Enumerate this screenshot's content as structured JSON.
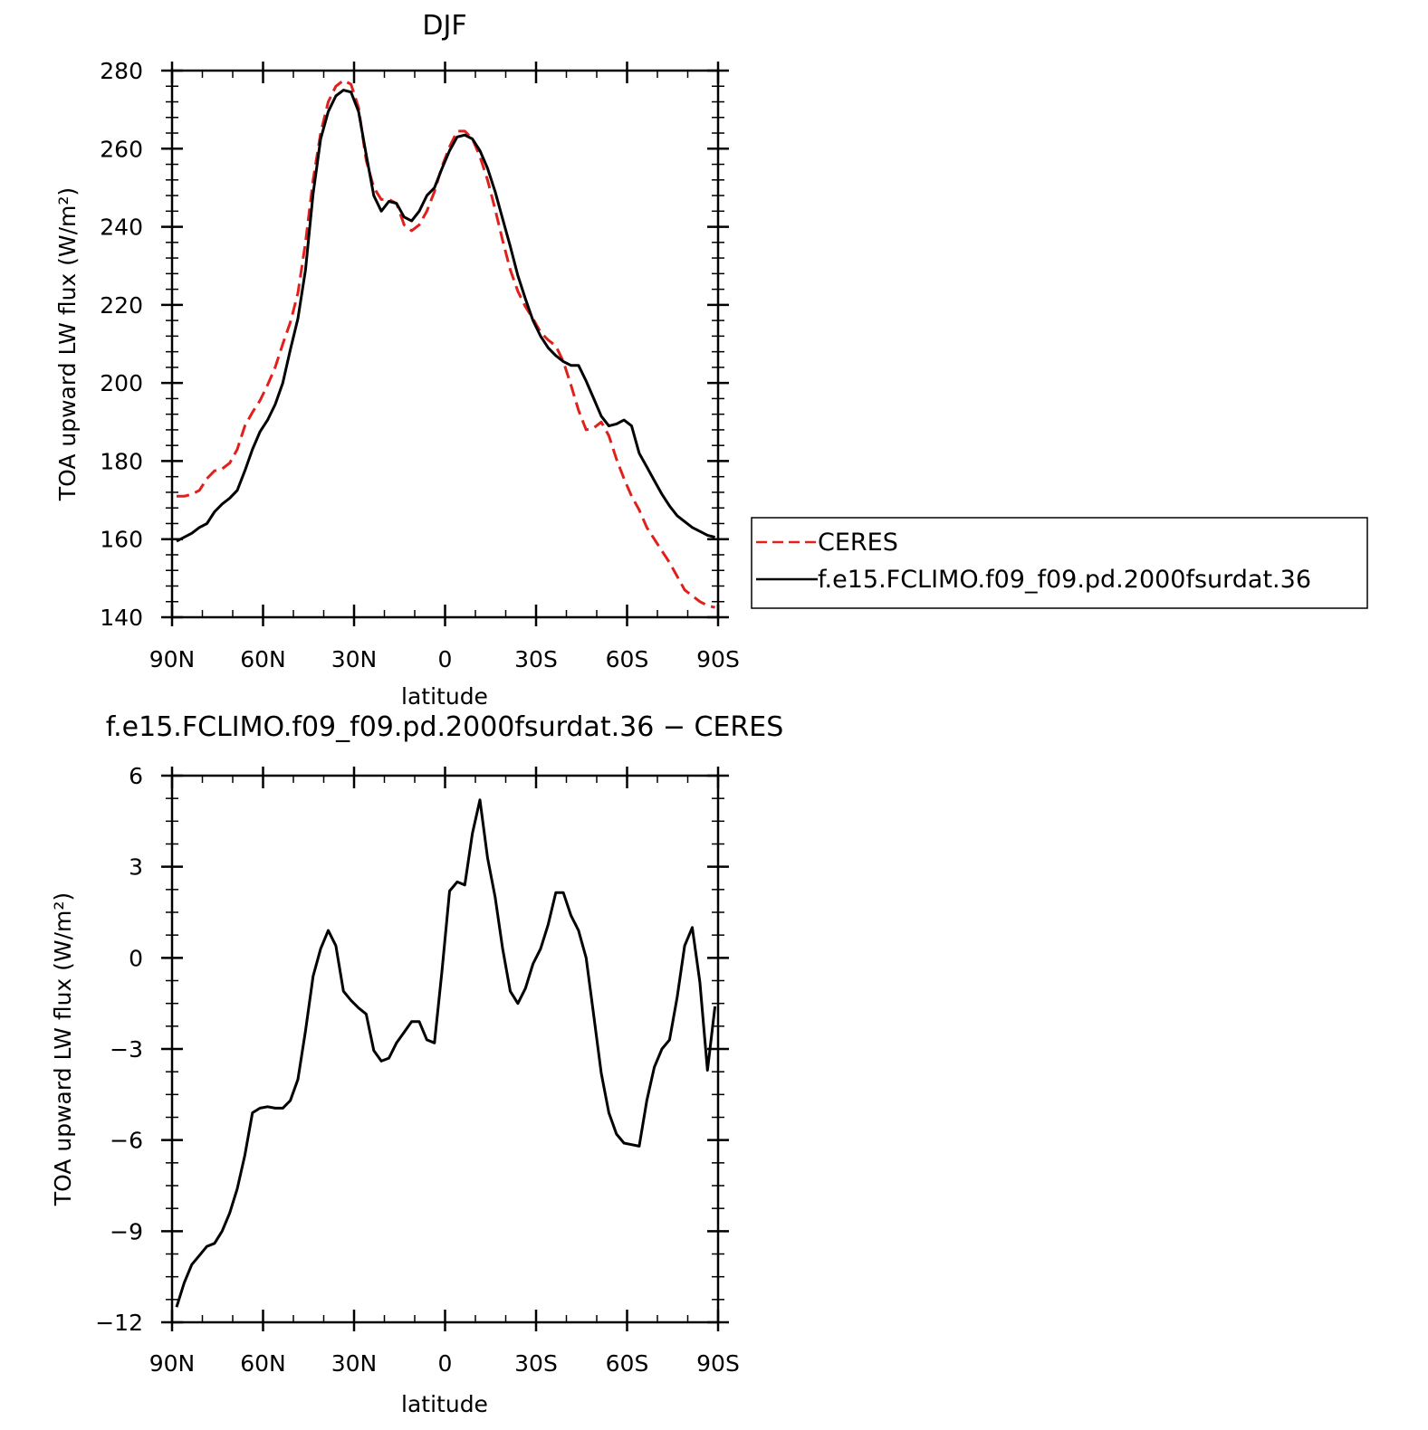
{
  "chart_data": [
    {
      "type": "line",
      "title": "DJF",
      "xlabel": "latitude",
      "ylabel": "TOA upward LW flux (W/m²)",
      "xlim": [
        90,
        -90
      ],
      "ylim": [
        140,
        280
      ],
      "xticks": [
        90,
        60,
        30,
        0,
        -30,
        -60,
        -90
      ],
      "xtick_labels": [
        "90N",
        "60N",
        "30N",
        "0",
        "30S",
        "60S",
        "90S"
      ],
      "yticks": [
        140,
        160,
        180,
        200,
        220,
        240,
        260,
        280
      ],
      "ytick_labels": [
        "140",
        "160",
        "180",
        "200",
        "220",
        "240",
        "260",
        "280"
      ],
      "legend_position": "right",
      "series": [
        {
          "name": "CERES",
          "color": "#e0201b",
          "dash": "dashed",
          "x": [
            88.5,
            86,
            83.5,
            81,
            78.5,
            76,
            73.5,
            71,
            68.5,
            66,
            63.5,
            61,
            58.5,
            56,
            53.5,
            51,
            48.5,
            46,
            43.5,
            41,
            38.5,
            36,
            33.5,
            31,
            28.5,
            26,
            23.5,
            21,
            18.5,
            16,
            13.5,
            11,
            8.5,
            6,
            3.5,
            1,
            -1.5,
            -4,
            -6.5,
            -9,
            -11.5,
            -14,
            -16.5,
            -19,
            -21.5,
            -24,
            -26.5,
            -29,
            -31.5,
            -34,
            -36.5,
            -39,
            -41.5,
            -44,
            -46.5,
            -49,
            -51.5,
            -54,
            -56.5,
            -59,
            -61.5,
            -64,
            -66.5,
            -69,
            -71.5,
            -74,
            -76.5,
            -79,
            -81.5,
            -84,
            -86.5,
            -89
          ],
          "y": [
            171.0,
            171.0,
            171.5,
            172.5,
            175.5,
            177.5,
            178.0,
            179.5,
            183.0,
            189.0,
            192.5,
            195.5,
            199.5,
            204.0,
            210.0,
            215.5,
            223.0,
            236.0,
            252.0,
            264.0,
            272.0,
            276.0,
            277.5,
            276.5,
            270.5,
            257.0,
            250.0,
            247.0,
            247.0,
            246.0,
            240.5,
            239.0,
            240.5,
            244.0,
            249.0,
            255.5,
            260.5,
            264.5,
            264.5,
            262.5,
            258.0,
            252.0,
            244.5,
            236.5,
            229.0,
            223.5,
            219.5,
            216.5,
            213.0,
            211.0,
            209.5,
            205.5,
            199.5,
            193.0,
            188.0,
            188.5,
            190.0,
            186.5,
            180.5,
            175.5,
            171.0,
            167.5,
            163.0,
            160.0,
            157.0,
            154.0,
            150.5,
            147.0,
            145.5,
            144.0,
            143.0,
            142.5
          ]
        },
        {
          "name": "f.e15.FCLIMO.f09_f09.pd.2000fsurdat.36",
          "color": "#000000",
          "dash": "solid",
          "x": [
            88.5,
            86,
            83.5,
            81,
            78.5,
            76,
            73.5,
            71,
            68.5,
            66,
            63.5,
            61,
            58.5,
            56,
            53.5,
            51,
            48.5,
            46,
            43.5,
            41,
            38.5,
            36,
            33.5,
            31,
            28.5,
            26,
            23.5,
            21,
            18.5,
            16,
            13.5,
            11,
            8.5,
            6,
            3.5,
            1,
            -1.5,
            -4,
            -6.5,
            -9,
            -11.5,
            -14,
            -16.5,
            -19,
            -21.5,
            -24,
            -26.5,
            -29,
            -31.5,
            -34,
            -36.5,
            -39,
            -41.5,
            -44,
            -46.5,
            -49,
            -51.5,
            -54,
            -56.5,
            -59,
            -61.5,
            -64,
            -66.5,
            -69,
            -71.5,
            -74,
            -76.5,
            -79,
            -81.5,
            -84,
            -86.5,
            -89
          ],
          "y": [
            159.5,
            160.5,
            161.5,
            163.0,
            164.0,
            167.0,
            169.0,
            170.5,
            172.5,
            177.5,
            183.0,
            187.5,
            190.5,
            194.5,
            200.0,
            208.5,
            216.5,
            229.0,
            248.5,
            262.5,
            269.5,
            273.5,
            275.0,
            274.5,
            269.5,
            258.5,
            248.0,
            244.0,
            246.5,
            246.0,
            242.5,
            241.5,
            244.0,
            248.0,
            250.0,
            255.0,
            259.5,
            263.0,
            263.5,
            262.5,
            259.5,
            255.0,
            249.0,
            242.0,
            235.0,
            227.5,
            221.5,
            216.0,
            212.0,
            209.0,
            207.0,
            205.5,
            204.5,
            204.5,
            200.5,
            196.0,
            191.5,
            189.0,
            189.5,
            190.5,
            189.0,
            182.0,
            178.5,
            175.0,
            171.5,
            168.5,
            166.0,
            164.5,
            163.0,
            162.0,
            161.0,
            160.5
          ]
        }
      ]
    },
    {
      "type": "line",
      "title": "f.e15.FCLIMO.f09_f09.pd.2000fsurdat.36 − CERES",
      "xlabel": "latitude",
      "ylabel": "TOA upward LW flux (W/m²)",
      "xlim": [
        90,
        -90
      ],
      "ylim": [
        -12,
        6
      ],
      "xticks": [
        90,
        60,
        30,
        0,
        -30,
        -60,
        -90
      ],
      "xtick_labels": [
        "90N",
        "60N",
        "30N",
        "0",
        "30S",
        "60S",
        "90S"
      ],
      "yticks": [
        -12,
        -9,
        -6,
        -3,
        0,
        3,
        6
      ],
      "ytick_labels": [
        "−12",
        "−9",
        "−6",
        "−3",
        "0",
        "3",
        "6"
      ],
      "series": [
        {
          "color": "#000000",
          "dash": "solid",
          "x": [
            88.5,
            86,
            83.5,
            81,
            78.5,
            76,
            73.5,
            71,
            68.5,
            66,
            63.5,
            61,
            58.5,
            56,
            53.5,
            51,
            48.5,
            46,
            43.5,
            41,
            38.5,
            36,
            33.5,
            31,
            28.5,
            26,
            23.5,
            21,
            18.5,
            16,
            13.5,
            11,
            8.5,
            6,
            3.5,
            1,
            -1.5,
            -4,
            -6.5,
            -9,
            -11.5,
            -14,
            -16.5,
            -19,
            -21.5,
            -24,
            -26.5,
            -29,
            -31.5,
            -34,
            -36.5,
            -39,
            -41.5,
            -44,
            -46.5,
            -49,
            -51.5,
            -54,
            -56.5,
            -59,
            -61.5,
            -64,
            -66.5,
            -69,
            -71.5,
            -74,
            -76.5,
            -79,
            -81.5,
            -84,
            -86.5,
            -89
          ],
          "y": [
            -11.5,
            -10.7,
            -10.1,
            -9.8,
            -9.5,
            -9.4,
            -9.0,
            -8.4,
            -7.6,
            -6.5,
            -5.1,
            -4.95,
            -4.9,
            -4.95,
            -4.95,
            -4.7,
            -4.0,
            -2.4,
            -0.6,
            0.3,
            0.9,
            0.4,
            -1.1,
            -1.4,
            -1.65,
            -1.85,
            -3.05,
            -3.4,
            -3.3,
            -2.8,
            -2.45,
            -2.1,
            -2.1,
            -2.7,
            -2.8,
            -0.4,
            2.2,
            2.5,
            2.4,
            4.1,
            5.2,
            3.3,
            2.0,
            0.3,
            -1.1,
            -1.5,
            -1.0,
            -0.2,
            0.3,
            1.1,
            2.15,
            2.15,
            1.4,
            0.9,
            0.0,
            -1.9,
            -3.8,
            -5.1,
            -5.8,
            -6.1,
            -6.15,
            -6.2,
            -4.7,
            -3.6,
            -3.0,
            -2.7,
            -1.3,
            0.4,
            1.0,
            -0.8,
            -3.7,
            -1.6
          ]
        }
      ]
    }
  ]
}
